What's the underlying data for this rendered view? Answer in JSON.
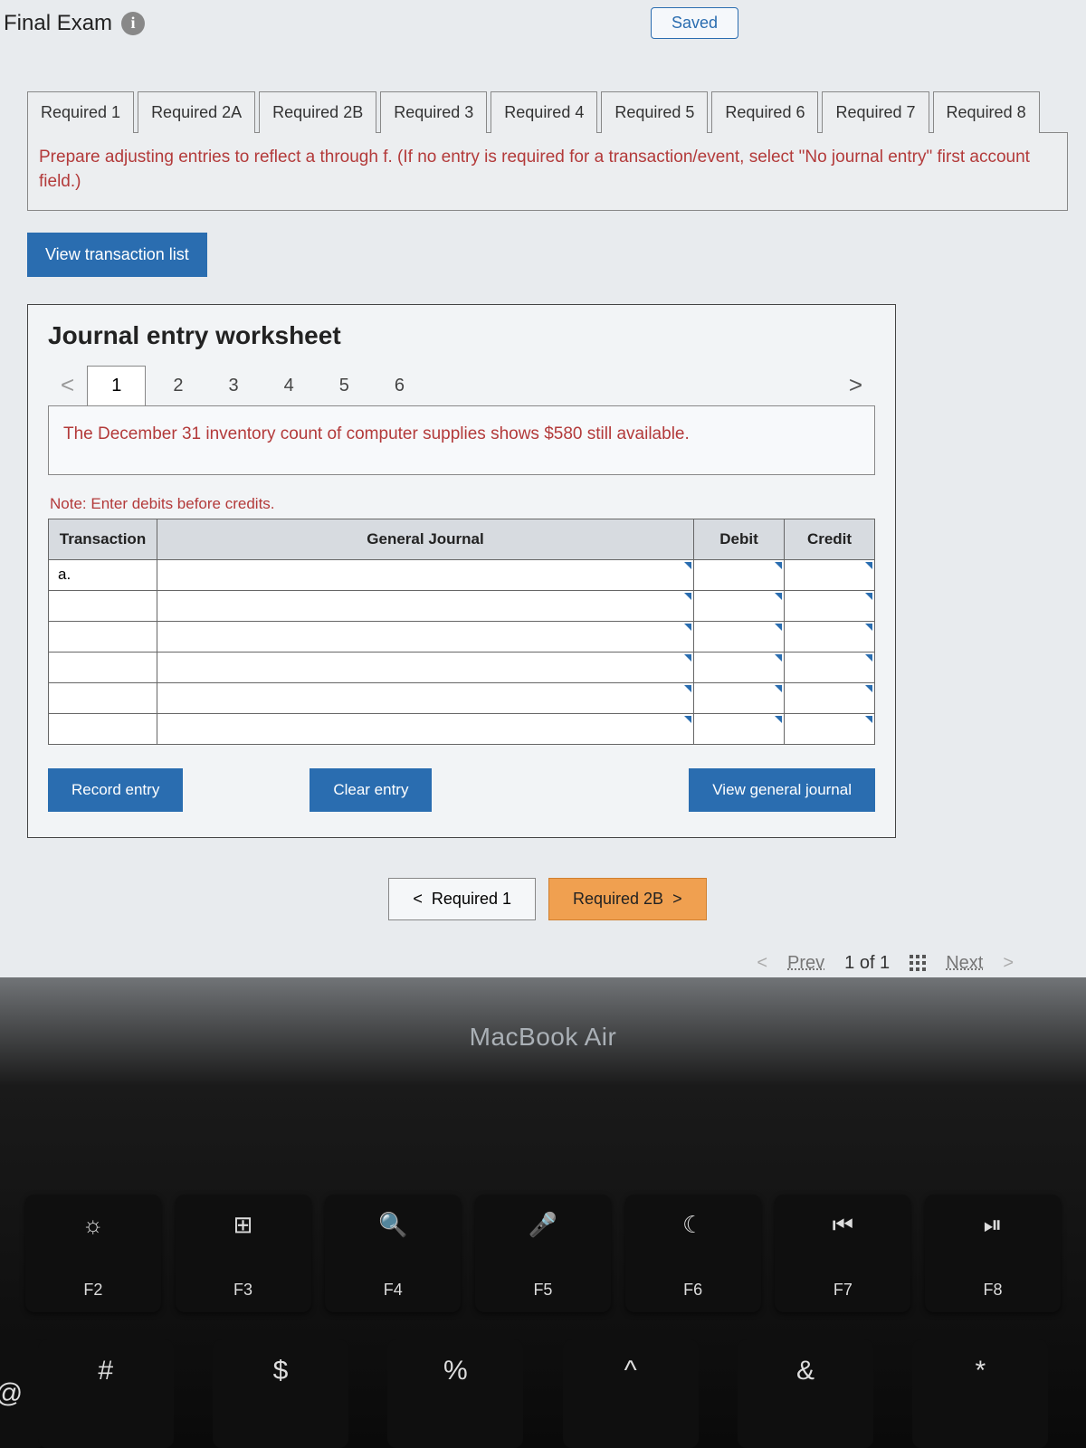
{
  "header": {
    "title": "Final Exam",
    "saved_label": "Saved"
  },
  "required_tabs": [
    "Required 1",
    "Required 2A",
    "Required 2B",
    "Required 3",
    "Required 4",
    "Required 5",
    "Required 6",
    "Required 7",
    "Required 8"
  ],
  "instruction_text": "Prepare adjusting entries to reflect a through f. (If no entry is required for a transaction/event, select \"No journal entry\" first account field.)",
  "view_transaction_label": "View transaction list",
  "worksheet": {
    "title": "Journal entry worksheet",
    "nav_prev": "<",
    "nav_next": ">",
    "tabs": [
      "1",
      "2",
      "3",
      "4",
      "5",
      "6"
    ],
    "active_tab_index": 0,
    "description": "The December 31 inventory count of computer supplies shows $580 still available.",
    "note": "Note: Enter debits before credits.",
    "table": {
      "headers": {
        "transaction": "Transaction",
        "general_journal": "General Journal",
        "debit": "Debit",
        "credit": "Credit"
      },
      "rows": [
        {
          "transaction": "a.",
          "gj": "",
          "debit": "",
          "credit": ""
        },
        {
          "transaction": "",
          "gj": "",
          "debit": "",
          "credit": ""
        },
        {
          "transaction": "",
          "gj": "",
          "debit": "",
          "credit": ""
        },
        {
          "transaction": "",
          "gj": "",
          "debit": "",
          "credit": ""
        },
        {
          "transaction": "",
          "gj": "",
          "debit": "",
          "credit": ""
        },
        {
          "transaction": "",
          "gj": "",
          "debit": "",
          "credit": ""
        }
      ]
    },
    "buttons": {
      "record": "Record entry",
      "clear": "Clear entry",
      "view_journal": "View general journal"
    }
  },
  "req_nav": {
    "prev_label": "Required 1",
    "next_label": "Required 2B"
  },
  "footer": {
    "prev": "Prev",
    "page_text": "1 of 1",
    "next": "Next"
  },
  "laptop_model": "MacBook Air",
  "fkeys": [
    {
      "sym": "☼",
      "label": "F2"
    },
    {
      "sym": "⊞",
      "label": "F3"
    },
    {
      "sym": "🔍",
      "label": "F4"
    },
    {
      "sym": "🎤",
      "label": "F5"
    },
    {
      "sym": "☾",
      "label": "F6"
    },
    {
      "sym": "⏮",
      "label": "F7"
    },
    {
      "sym": "⏯",
      "label": "F8"
    }
  ],
  "numkeys": [
    "#",
    "$",
    "%",
    "^",
    "&",
    "*"
  ],
  "edge_key": "@",
  "colors": {
    "accent": "#2a6db0",
    "warn_text": "#b33a3a",
    "pill_orange": "#f0a050"
  }
}
